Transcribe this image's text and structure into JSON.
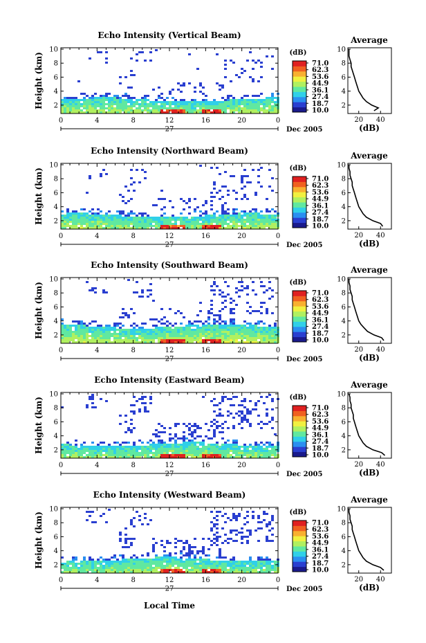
{
  "chart_data": {
    "type": "heatmap",
    "xlabel": "Local Time",
    "date_label": "27",
    "month_label": "Dec 2005",
    "x_ticks": [
      "0",
      "4",
      "8",
      "12",
      "16",
      "20",
      "0"
    ],
    "y_ticks": [
      "2",
      "4",
      "6",
      "8",
      "10"
    ],
    "ylabel": "Height (km)",
    "ylim": [
      0.8,
      10.2
    ],
    "xlim": [
      0,
      24
    ],
    "colorbar": {
      "unit": "(dB)",
      "ticks": [
        "71.0",
        "62.3",
        "53.6",
        "44.9",
        "36.1",
        "27.4",
        "18.7",
        "10.0"
      ],
      "range": [
        10.0,
        71.0
      ]
    },
    "average": {
      "title": "Average",
      "xlabel": "(dB)",
      "x_ticks": [
        "20",
        "40"
      ],
      "xlim": [
        10,
        50
      ],
      "y_ticks": [
        "2",
        "4",
        "6",
        "8",
        "10"
      ]
    },
    "panels": [
      {
        "title": "Echo Intensity (Vertical Beam)",
        "average_profile": [
          [
            34,
            1.2
          ],
          [
            38,
            1.6
          ],
          [
            32,
            2.0
          ],
          [
            27,
            2.5
          ],
          [
            24,
            3.0
          ],
          [
            22,
            3.5
          ],
          [
            20,
            4.0
          ],
          [
            19,
            4.5
          ],
          [
            18,
            5.0
          ],
          [
            17,
            5.5
          ],
          [
            16,
            6.0
          ],
          [
            15,
            6.5
          ],
          [
            14,
            7.0
          ],
          [
            13,
            7.5
          ],
          [
            13,
            8.0
          ],
          [
            12,
            8.5
          ],
          [
            11,
            9.0
          ],
          [
            11,
            9.5
          ],
          [
            11,
            10.0
          ]
        ]
      },
      {
        "title": "Echo Intensity (Northward Beam)",
        "average_profile": [
          [
            42,
            1.2
          ],
          [
            40,
            1.6
          ],
          [
            33,
            2.0
          ],
          [
            27,
            2.5
          ],
          [
            24,
            3.0
          ],
          [
            22,
            3.5
          ],
          [
            20,
            4.0
          ],
          [
            19,
            4.5
          ],
          [
            18,
            5.0
          ],
          [
            17,
            5.5
          ],
          [
            16,
            6.0
          ],
          [
            15,
            6.5
          ],
          [
            14,
            7.0
          ],
          [
            14,
            7.5
          ],
          [
            13,
            8.0
          ],
          [
            12,
            8.5
          ],
          [
            12,
            9.0
          ],
          [
            11,
            9.5
          ],
          [
            11,
            10.0
          ]
        ]
      },
      {
        "title": "Echo Intensity (Southward Beam)",
        "average_profile": [
          [
            43,
            1.2
          ],
          [
            41,
            1.6
          ],
          [
            34,
            2.0
          ],
          [
            28,
            2.5
          ],
          [
            25,
            3.0
          ],
          [
            22,
            3.5
          ],
          [
            20,
            4.0
          ],
          [
            19,
            4.5
          ],
          [
            18,
            5.0
          ],
          [
            17,
            5.5
          ],
          [
            16,
            6.0
          ],
          [
            15,
            6.5
          ],
          [
            14,
            7.0
          ],
          [
            14,
            7.5
          ],
          [
            13,
            8.0
          ],
          [
            12,
            8.5
          ],
          [
            12,
            9.0
          ],
          [
            11,
            9.5
          ],
          [
            11,
            10.0
          ]
        ]
      },
      {
        "title": "Echo Intensity (Eastward Beam)",
        "average_profile": [
          [
            44,
            1.2
          ],
          [
            41,
            1.6
          ],
          [
            33,
            2.0
          ],
          [
            27,
            2.5
          ],
          [
            24,
            3.0
          ],
          [
            22,
            3.5
          ],
          [
            20,
            4.0
          ],
          [
            19,
            4.5
          ],
          [
            18,
            5.0
          ],
          [
            17,
            5.5
          ],
          [
            16,
            6.0
          ],
          [
            15,
            6.5
          ],
          [
            15,
            7.0
          ],
          [
            14,
            7.5
          ],
          [
            13,
            8.0
          ],
          [
            13,
            8.5
          ],
          [
            12,
            9.0
          ],
          [
            12,
            9.5
          ],
          [
            11,
            10.0
          ]
        ]
      },
      {
        "title": "Echo Intensity (Westward Beam)",
        "average_profile": [
          [
            43,
            1.2
          ],
          [
            40,
            1.6
          ],
          [
            33,
            2.0
          ],
          [
            27,
            2.5
          ],
          [
            24,
            3.0
          ],
          [
            22,
            3.5
          ],
          [
            20,
            4.0
          ],
          [
            19,
            4.5
          ],
          [
            18,
            5.0
          ],
          [
            17,
            5.5
          ],
          [
            16,
            6.0
          ],
          [
            15,
            6.5
          ],
          [
            14,
            7.0
          ],
          [
            14,
            7.5
          ],
          [
            13,
            8.0
          ],
          [
            12,
            8.5
          ],
          [
            12,
            9.0
          ],
          [
            11,
            9.5
          ],
          [
            11,
            10.0
          ]
        ]
      }
    ],
    "colorscale": [
      "#1a1a8c",
      "#2a3fd0",
      "#2a8ff0",
      "#30d0e8",
      "#60e8a0",
      "#b0f060",
      "#f0f040",
      "#f8b030",
      "#f06020",
      "#e02020"
    ]
  }
}
